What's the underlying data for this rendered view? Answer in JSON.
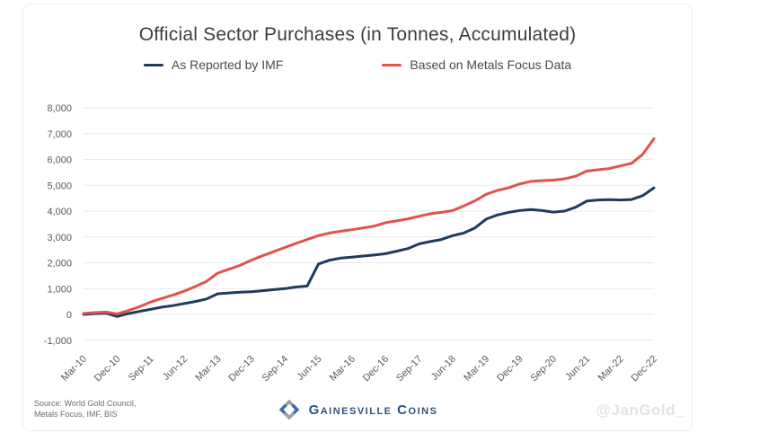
{
  "title": "Official Sector Purchases (in Tonnes, Accumulated)",
  "legend": [
    {
      "label": "As Reported by IMF",
      "color": "#1f3c5b"
    },
    {
      "label": "Based on Metals Focus Data",
      "color": "#e0534a"
    }
  ],
  "footer": {
    "source_line1": "Source: World Gold Council,",
    "source_line2": "Metals Focus, IMF, BIS",
    "logo_text": "Gainesville Coins",
    "watermark": "@JanGold_"
  },
  "colors": {
    "imf_line": "#1f3c5b",
    "metals_focus_line": "#e0534a",
    "gridline": "#e9e9e9",
    "axis_text": "#595959",
    "logo_blue": "#2f5379",
    "logo_gray": "#9aa0a6"
  },
  "chart_data": {
    "type": "line",
    "title": "Official Sector Purchases (in Tonnes, Accumulated)",
    "xlabel": "",
    "ylabel": "",
    "ylim": [
      -1000,
      8000
    ],
    "y_tick_step": 1000,
    "y_tick_labels": [
      "8,000",
      "7,000",
      "6,000",
      "5,000",
      "4,000",
      "3,000",
      "2,000",
      "1,000",
      "0",
      "-1,000"
    ],
    "x_tick_labels": [
      "Mar-10",
      "Dec-10",
      "Sep-11",
      "Jun-12",
      "Mar-13",
      "Dec-13",
      "Sep-14",
      "Jun-15",
      "Mar-16",
      "Dec-16",
      "Sep-17",
      "Jun-18",
      "Mar-19",
      "Dec-19",
      "Sep-20",
      "Jun-21",
      "Mar-22",
      "Dec-22"
    ],
    "x_tick_every": 3,
    "grid": "horizontal",
    "legend_position": "top",
    "categories": [
      "Mar-10",
      "Jun-10",
      "Sep-10",
      "Dec-10",
      "Mar-11",
      "Jun-11",
      "Sep-11",
      "Dec-11",
      "Mar-12",
      "Jun-12",
      "Sep-12",
      "Dec-12",
      "Mar-13",
      "Jun-13",
      "Sep-13",
      "Dec-13",
      "Mar-14",
      "Jun-14",
      "Sep-14",
      "Dec-14",
      "Mar-15",
      "Jun-15",
      "Sep-15",
      "Dec-15",
      "Mar-16",
      "Jun-16",
      "Sep-16",
      "Dec-16",
      "Mar-17",
      "Jun-17",
      "Sep-17",
      "Dec-17",
      "Mar-18",
      "Jun-18",
      "Sep-18",
      "Dec-18",
      "Mar-19",
      "Jun-19",
      "Sep-19",
      "Dec-19",
      "Mar-20",
      "Jun-20",
      "Sep-20",
      "Dec-20",
      "Mar-21",
      "Jun-21",
      "Sep-21",
      "Dec-21",
      "Mar-22",
      "Jun-22",
      "Sep-22",
      "Dec-22"
    ],
    "series": [
      {
        "name": "As Reported by IMF",
        "color": "#1f3c5b",
        "values": [
          0,
          30,
          50,
          -80,
          30,
          120,
          200,
          280,
          340,
          420,
          500,
          600,
          800,
          830,
          860,
          880,
          920,
          960,
          1000,
          1060,
          1100,
          1950,
          2100,
          2180,
          2220,
          2260,
          2300,
          2350,
          2450,
          2550,
          2730,
          2820,
          2900,
          3050,
          3150,
          3350,
          3690,
          3850,
          3950,
          4020,
          4060,
          4020,
          3960,
          4000,
          4150,
          4390,
          4430,
          4440,
          4430,
          4450,
          4600,
          4900
        ]
      },
      {
        "name": "Based on Metals Focus Data",
        "color": "#e0534a",
        "values": [
          40,
          70,
          90,
          20,
          150,
          300,
          480,
          620,
          750,
          900,
          1080,
          1280,
          1600,
          1750,
          1900,
          2100,
          2270,
          2430,
          2590,
          2750,
          2900,
          3050,
          3150,
          3220,
          3280,
          3350,
          3420,
          3550,
          3620,
          3700,
          3800,
          3900,
          3950,
          4020,
          4200,
          4400,
          4650,
          4800,
          4900,
          5050,
          5150,
          5180,
          5200,
          5250,
          5350,
          5550,
          5600,
          5650,
          5750,
          5850,
          6200,
          6800
        ]
      }
    ]
  }
}
